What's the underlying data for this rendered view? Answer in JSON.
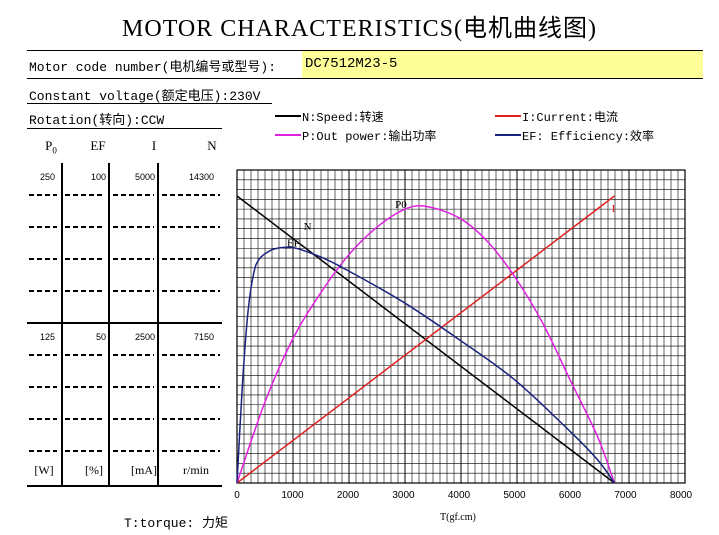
{
  "header": {
    "title": "MOTOR CHARACTERISTICS(电机曲线图)"
  },
  "info": {
    "code_label": "Motor code number(电机编号或型号):",
    "code_value": "DC7512M23-5",
    "voltage": "Constant voltage(额定电压):230V",
    "rotation": "Rotation(转向):CCW"
  },
  "legend": [
    {
      "text": "N:Speed:转速",
      "color": "#000000"
    },
    {
      "text": "I:Current:电流",
      "color": "#e02020"
    },
    {
      "text": "P:Out power:输出功率",
      "color": "#e020e0"
    },
    {
      "text": "EF: Efficiency:效率",
      "color": "#1a237e"
    }
  ],
  "scale_table": {
    "headers": [
      "P0",
      "EF",
      "I",
      "N"
    ],
    "top": [
      "250",
      "100",
      "5000",
      "14300"
    ],
    "mid": [
      "125",
      "50",
      "2500",
      "7150"
    ],
    "units": [
      "[W]",
      "[%]",
      "[mA]",
      "r/min"
    ]
  },
  "footer": {
    "torque_label": "T:torque: 力矩",
    "xlabel": "T(gf.cm)"
  },
  "chart_data": {
    "type": "line",
    "xlabel": "T(gf.cm)",
    "x_ticks": [
      "0",
      "1000",
      "2000",
      "3000",
      "4000",
      "5000",
      "6000",
      "7000",
      "8000"
    ],
    "xlim": [
      0,
      8000
    ],
    "grid": true,
    "series": [
      {
        "name": "N",
        "color": "#000000",
        "ymax": 14300,
        "x": [
          0,
          6800
        ],
        "y": [
          14300,
          0
        ]
      },
      {
        "name": "I",
        "color": "#e02020",
        "ymax": 5000,
        "x": [
          0,
          6800
        ],
        "y": [
          0,
          5000
        ]
      },
      {
        "name": "P0",
        "color": "#e020e0",
        "ymax": 250,
        "x": [
          0,
          500,
          1000,
          1500,
          2000,
          2500,
          3000,
          3400,
          4000,
          4500,
          5000,
          5500,
          6000,
          6500,
          6800
        ],
        "y": [
          0,
          70,
          125,
          165,
          198,
          222,
          238,
          241,
          231,
          211,
          180,
          140,
          90,
          40,
          0
        ]
      },
      {
        "name": "EF",
        "color": "#1a237e",
        "ymax": 100,
        "x": [
          0,
          100,
          200,
          300,
          400,
          600,
          800,
          1000,
          1200,
          1600,
          2000,
          3000,
          4000,
          5000,
          6000,
          6500,
          6800
        ],
        "y": [
          0,
          35,
          60,
          73,
          78,
          81,
          82,
          82,
          81,
          78,
          74,
          63,
          50,
          36,
          18,
          8,
          0
        ]
      }
    ]
  }
}
